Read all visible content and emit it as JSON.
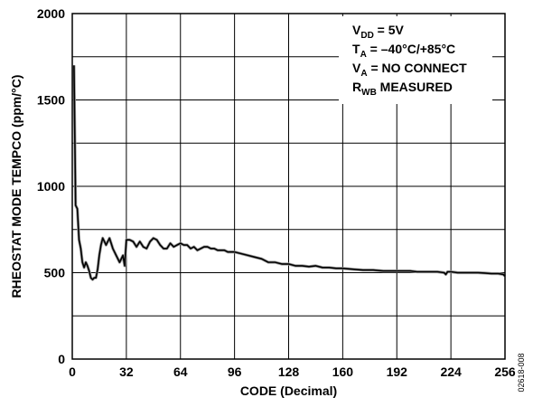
{
  "chart_data": {
    "type": "line",
    "xlabel": "CODE (Decimal)",
    "ylabel": "RHEOSTAT MODE TEMPCO (ppm/°C)",
    "xlim": [
      0,
      256
    ],
    "ylim": [
      0,
      2000
    ],
    "x_ticks": [
      0,
      32,
      64,
      96,
      128,
      160,
      192,
      224,
      256
    ],
    "y_ticks": [
      0,
      500,
      1000,
      1500,
      2000
    ],
    "grid": true,
    "annotations": [
      {
        "main": "V",
        "sub": "DD",
        "rest": " = 5V"
      },
      {
        "main": "T",
        "sub": "A",
        "rest": " = –40°C/+85°C"
      },
      {
        "main": "V",
        "sub": "A",
        "rest": " = NO CONNECT"
      },
      {
        "main": "R",
        "sub": "WB",
        "rest": " MEASURED"
      }
    ],
    "series": [
      {
        "color": "#000000",
        "x": [
          1,
          2,
          3,
          4,
          5,
          6,
          7,
          8,
          9,
          10,
          11,
          12,
          13,
          14,
          15,
          16,
          17,
          18,
          19,
          20,
          22,
          24,
          26,
          28,
          30,
          31,
          32,
          34,
          36,
          38,
          40,
          42,
          44,
          46,
          48,
          50,
          52,
          54,
          56,
          58,
          60,
          62,
          64,
          66,
          68,
          70,
          72,
          74,
          76,
          78,
          80,
          82,
          84,
          86,
          88,
          90,
          92,
          94,
          96,
          100,
          104,
          108,
          112,
          116,
          120,
          124,
          128,
          132,
          136,
          140,
          144,
          148,
          152,
          156,
          160,
          166,
          172,
          178,
          184,
          190,
          196,
          200,
          204,
          208,
          212,
          216,
          220,
          221,
          222,
          224,
          228,
          232,
          236,
          240,
          244,
          248,
          252,
          255,
          256
        ],
        "y": [
          1700,
          890,
          870,
          690,
          640,
          560,
          530,
          560,
          540,
          510,
          470,
          460,
          470,
          470,
          520,
          600,
          660,
          700,
          680,
          660,
          700,
          640,
          600,
          560,
          600,
          540,
          690,
          690,
          680,
          650,
          680,
          650,
          640,
          680,
          700,
          690,
          660,
          640,
          640,
          670,
          650,
          660,
          670,
          660,
          660,
          640,
          650,
          630,
          640,
          650,
          650,
          640,
          640,
          630,
          630,
          630,
          620,
          620,
          620,
          610,
          600,
          590,
          580,
          560,
          560,
          550,
          550,
          540,
          540,
          535,
          540,
          530,
          530,
          525,
          525,
          520,
          515,
          515,
          510,
          510,
          510,
          510,
          505,
          505,
          505,
          505,
          500,
          490,
          505,
          505,
          500,
          500,
          500,
          500,
          498,
          495,
          495,
          490,
          480
        ]
      }
    ]
  },
  "code_label": "02618-008"
}
